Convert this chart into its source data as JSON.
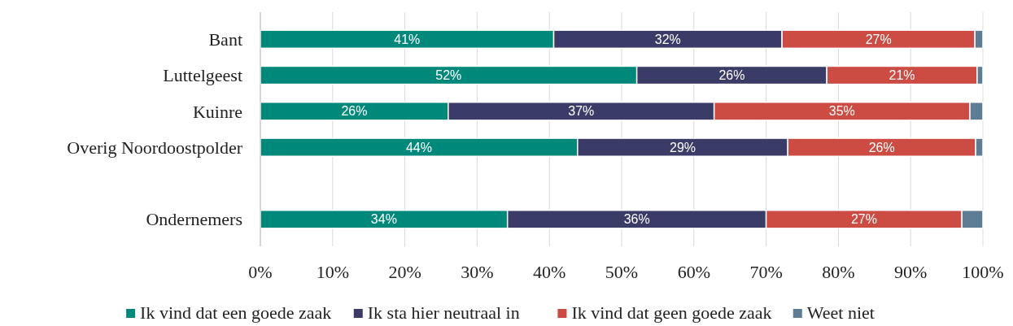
{
  "chart_data": {
    "type": "bar",
    "orientation": "horizontal",
    "stacked": true,
    "categories": [
      "Bant",
      "Luttelgeest",
      "Kuinre",
      "Overig Noordoostpolder",
      null,
      "Ondernemers"
    ],
    "series": [
      {
        "name": "Ik vind dat een goede zaak",
        "color": "#00897b",
        "values": [
          40.6,
          52.1,
          26.0,
          43.9,
          null,
          34.2
        ],
        "value_labels": [
          "41%",
          "52%",
          "26%",
          "44%",
          null,
          "34%"
        ]
      },
      {
        "name": "Ik sta hier neutraal in",
        "color": "#3b3b68",
        "values": [
          31.6,
          26.3,
          36.8,
          29.1,
          null,
          35.8
        ],
        "value_labels": [
          "32%",
          "26%",
          "37%",
          "29%",
          null,
          "36%"
        ]
      },
      {
        "name": "Ik vind dat geen goede zaak",
        "color": "#cc4b43",
        "values": [
          26.7,
          20.8,
          35.4,
          26.0,
          null,
          27.1
        ],
        "value_labels": [
          "27%",
          "21%",
          "35%",
          "26%",
          null,
          "27%"
        ]
      },
      {
        "name": "Weet niet",
        "color": "#5e7c93",
        "values": [
          1.1,
          0.8,
          1.8,
          1.0,
          null,
          2.9
        ]
      }
    ],
    "xlim": [
      0,
      100
    ],
    "xticks": [
      {
        "value": 0,
        "label": "0%"
      },
      {
        "value": 10,
        "label": "10%"
      },
      {
        "value": 20,
        "label": "20%"
      },
      {
        "value": 30,
        "label": "30%"
      },
      {
        "value": 40,
        "label": "40%"
      },
      {
        "value": 50,
        "label": "50%"
      },
      {
        "value": 60,
        "label": "60%"
      },
      {
        "value": 70,
        "label": "70%"
      },
      {
        "value": 80,
        "label": "80%"
      },
      {
        "value": 90,
        "label": "90%"
      },
      {
        "value": 100,
        "label": "100%"
      }
    ],
    "grid": "x",
    "legend": "bottom"
  }
}
